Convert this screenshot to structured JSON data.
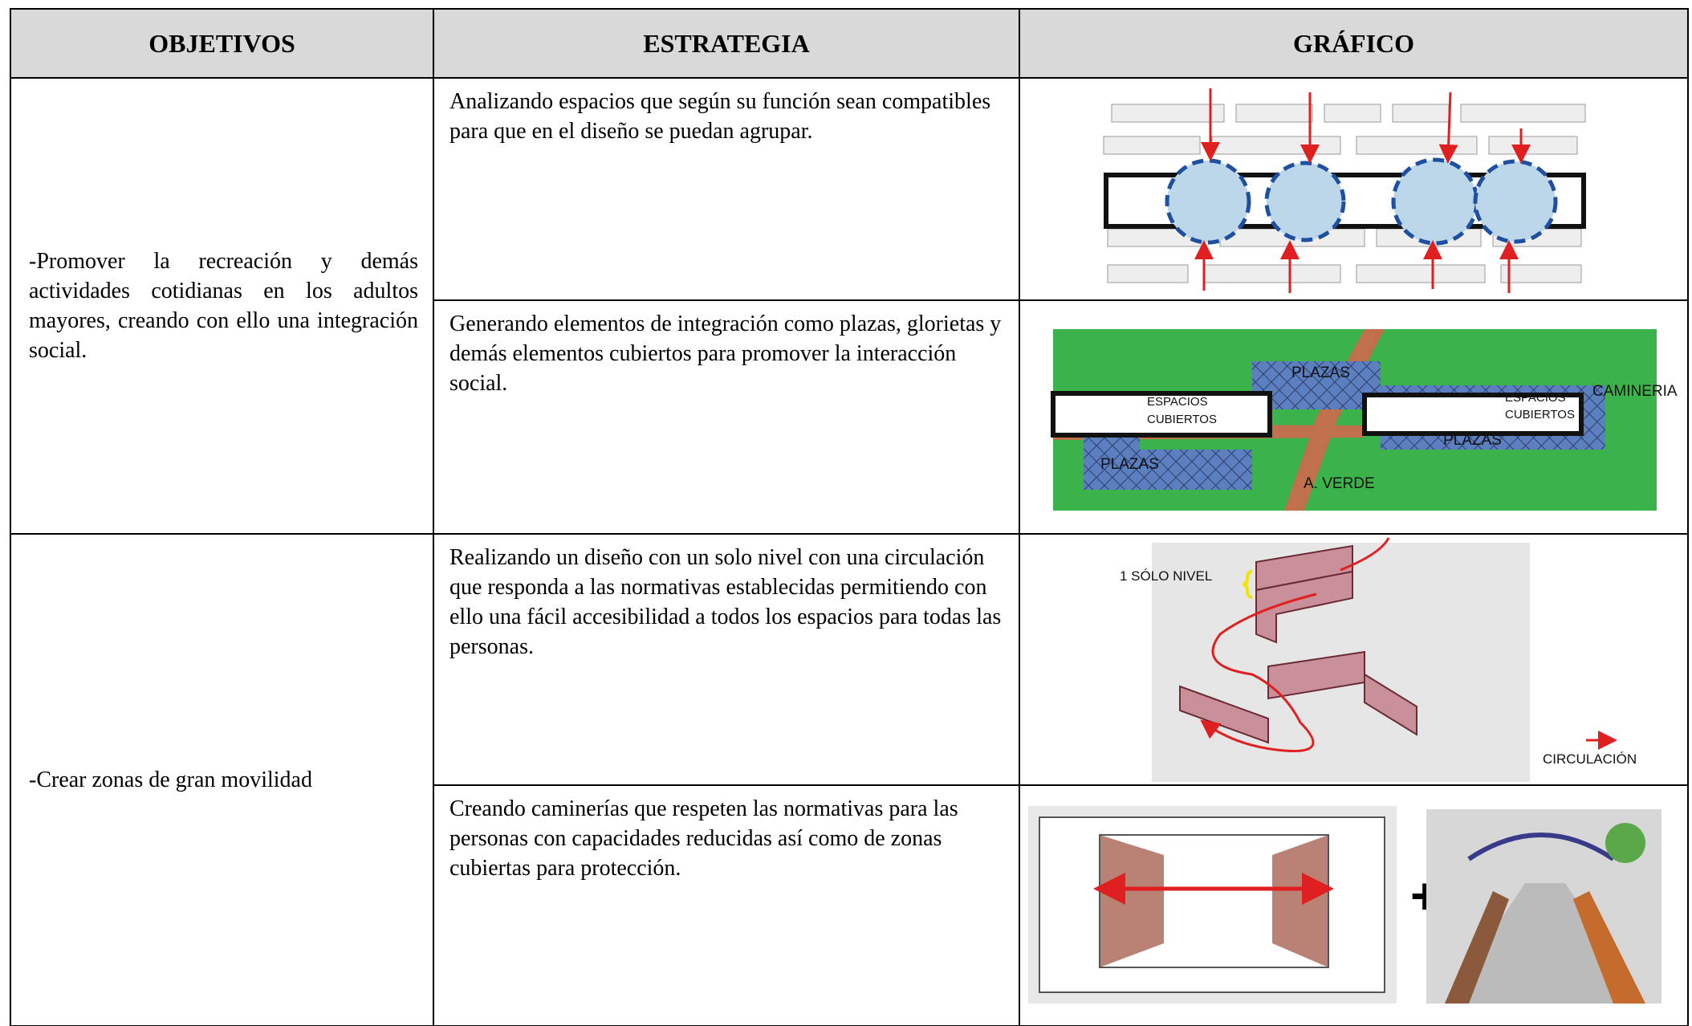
{
  "table": {
    "headers": [
      "OBJETIVOS",
      "ESTRATEGIA",
      "GRÁFICO"
    ],
    "groups": [
      {
        "objective": "-Promover la recreación y demás actividades cotidianas en los adultos mayores, creando con ello una integración social.",
        "rows": [
          {
            "strategy": "Analizando espacios que según su función sean compatibles para que en el diseño se puedan agrupar."
          },
          {
            "strategy": "Generando elementos de integración como plazas, glorietas y demás elementos cubiertos para promover la interacción social.",
            "graphic_labels": [
              "PLAZAS",
              "ESPACIOS",
              "CUBIERTOS",
              "CAMINERIA",
              "ESPACIOS",
              "CUBIERTOS",
              "PLAZAS",
              "PLAZAS",
              "A. VERDE"
            ]
          }
        ]
      },
      {
        "objective": "-Crear zonas de gran movilidad",
        "rows": [
          {
            "strategy": "Realizando un diseño con un solo nivel con una circulación que responda a las normativas establecidas permitiendo con ello una fácil accesibilidad a todos los espacios para todas las personas.",
            "graphic_labels": [
              "1 SÓLO NIVEL",
              "CIRCULACIÓN"
            ]
          },
          {
            "strategy": "Creando caminerías que respeten las normativas para las personas con capacidades reducidas así como de zonas cubiertas para protección.",
            "graphic_labels": [
              "+"
            ]
          }
        ]
      }
    ]
  }
}
